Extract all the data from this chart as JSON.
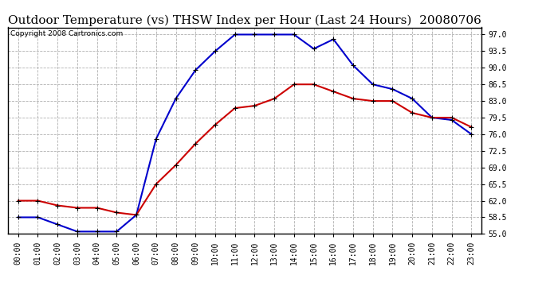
{
  "title": "Outdoor Temperature (vs) THSW Index per Hour (Last 24 Hours)  20080706",
  "copyright": "Copyright 2008 Cartronics.com",
  "hours": [
    "00:00",
    "01:00",
    "02:00",
    "03:00",
    "04:00",
    "05:00",
    "06:00",
    "07:00",
    "08:00",
    "09:00",
    "10:00",
    "11:00",
    "12:00",
    "13:00",
    "14:00",
    "15:00",
    "16:00",
    "17:00",
    "18:00",
    "19:00",
    "20:00",
    "21:00",
    "22:00",
    "23:00"
  ],
  "temp": [
    62.0,
    62.0,
    61.0,
    60.5,
    60.5,
    59.5,
    59.0,
    65.5,
    69.5,
    74.0,
    78.0,
    81.5,
    82.0,
    83.5,
    86.5,
    86.5,
    85.0,
    83.5,
    83.0,
    83.0,
    80.5,
    79.5,
    79.5,
    77.5
  ],
  "thsw": [
    58.5,
    58.5,
    57.0,
    55.5,
    55.5,
    55.5,
    59.0,
    75.0,
    83.5,
    89.5,
    93.5,
    97.0,
    97.0,
    97.0,
    97.0,
    94.0,
    96.0,
    90.5,
    86.5,
    85.5,
    83.5,
    79.5,
    79.0,
    76.0
  ],
  "temp_color": "#cc0000",
  "thsw_color": "#0000cc",
  "bg_color": "#ffffff",
  "plot_bg": "#ffffff",
  "grid_color": "#b0b0b0",
  "ylim": [
    55.0,
    98.5
  ],
  "yticks": [
    55.0,
    58.5,
    62.0,
    65.5,
    69.0,
    72.5,
    76.0,
    79.5,
    83.0,
    86.5,
    90.0,
    93.5,
    97.0
  ],
  "title_fontsize": 11,
  "copyright_fontsize": 6.5,
  "tick_fontsize": 7,
  "marker": "+",
  "markersize": 5,
  "linewidth": 1.5
}
